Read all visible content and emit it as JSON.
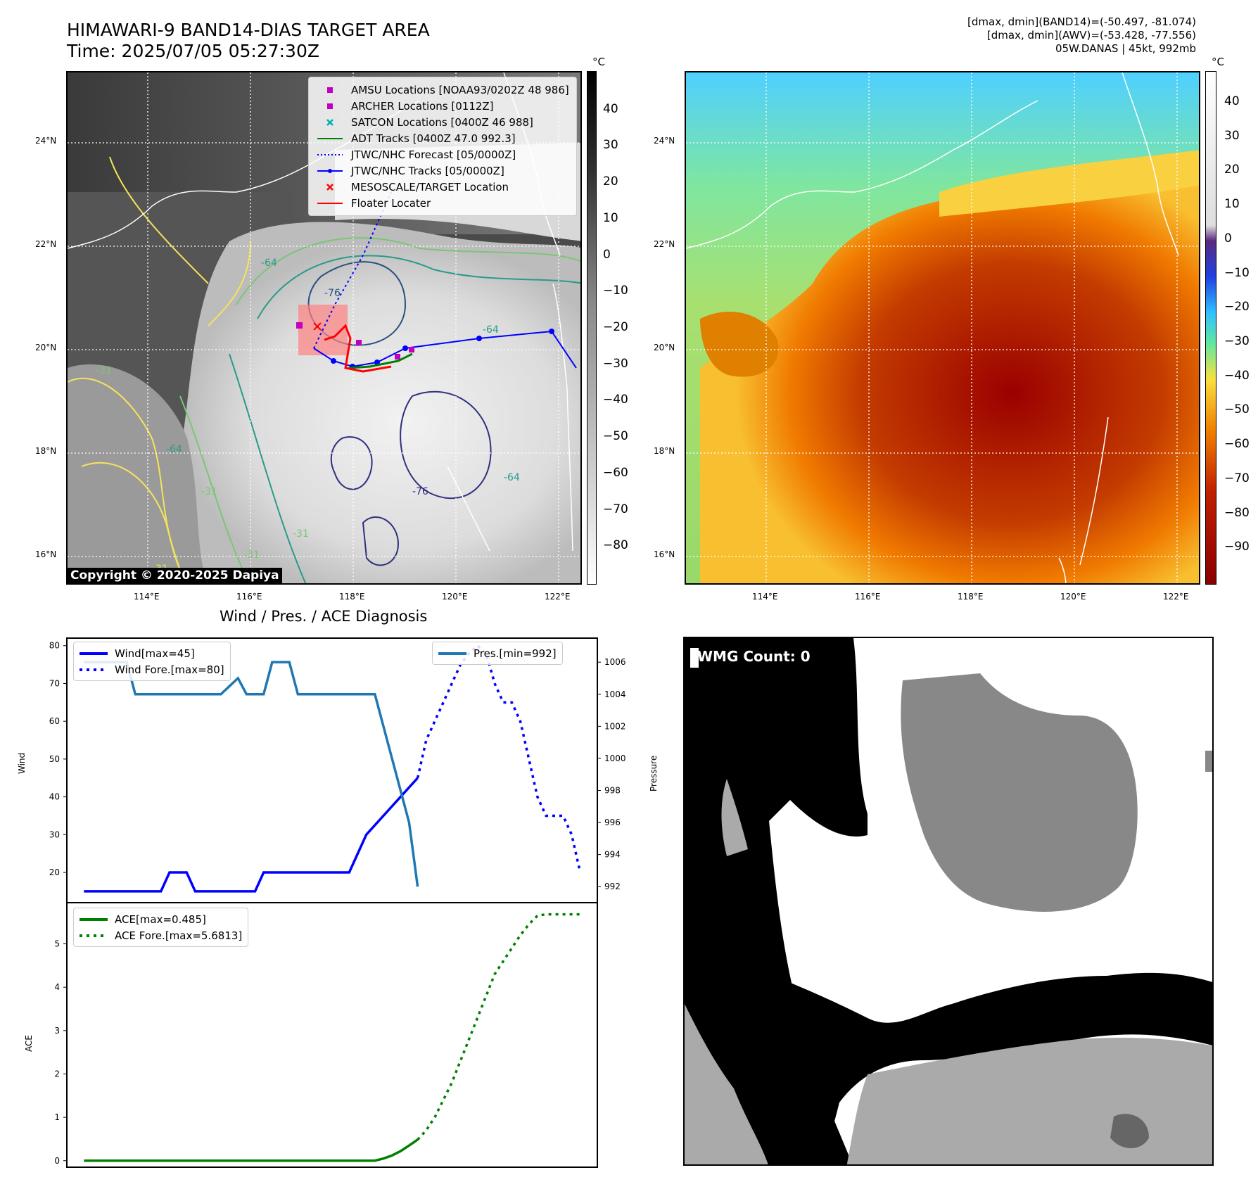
{
  "header": {
    "title_line1": "HIMAWARI-9 BAND14-DIAS TARGET AREA",
    "title_line2": "Time: 2025/07/05 05:27:30Z",
    "info_line1": "[dmax, dmin](BAND14)=(-50.497, -81.074)",
    "info_line2": "[dmax, dmin](AWV)=(-53.428, -77.556)",
    "info_line3": "05W.DANAS | 45kt, 992mb"
  },
  "map_axes": {
    "lat_ticks": [
      "24°N",
      "22°N",
      "20°N",
      "18°N",
      "16°N"
    ],
    "lon_ticks": [
      "114°E",
      "116°E",
      "118°E",
      "120°E",
      "122°E"
    ],
    "contour_labels": [
      "-64",
      "-76",
      "-31",
      "-31",
      "-64",
      "-76",
      "-64",
      "-31",
      "-31",
      "-31",
      "-64"
    ]
  },
  "ir_map": {
    "legend": [
      {
        "label": "AMSU Locations [NOAA93/0202Z 48 986]",
        "marker": "square",
        "color": "#c000c0"
      },
      {
        "label": "ARCHER Locations [0112Z]",
        "marker": "square",
        "color": "#c000c0"
      },
      {
        "label": "SATCON Locations [0400Z 46 988]",
        "marker": "x",
        "color": "#00b0b0"
      },
      {
        "label": "ADT Tracks [0400Z 47.0 992.3]",
        "marker": "line",
        "color": "#008000"
      },
      {
        "label": "JTWC/NHC Forecast [05/0000Z]",
        "marker": "dotted",
        "color": "#0000ff"
      },
      {
        "label": "JTWC/NHC Tracks [05/0000Z]",
        "marker": "line-dot",
        "color": "#0000ff"
      },
      {
        "label": "MESOSCALE/TARGET Location",
        "marker": "x",
        "color": "#ff0000"
      },
      {
        "label": "Floater Locater",
        "marker": "line",
        "color": "#ff0000"
      }
    ],
    "colorbar_unit": "°C",
    "colorbar_ticks": [
      "40",
      "30",
      "20",
      "10",
      "0",
      "−10",
      "−20",
      "−30",
      "−40",
      "−50",
      "−60",
      "−70",
      "−80"
    ],
    "copyright": "Copyright © 2020-2025 Dapiya"
  },
  "awv_map": {
    "colorbar_unit": "°C",
    "colorbar_ticks": [
      "40",
      "30",
      "20",
      "10",
      "0",
      "−10",
      "−20",
      "−30",
      "−40",
      "−50",
      "−60",
      "−70",
      "−80",
      "−90"
    ]
  },
  "wmg": {
    "label": "WMG Count: 0"
  },
  "chart_data": [
    {
      "type": "line",
      "title": "Wind / Pres. / ACE Diagnosis",
      "ylabel": "Wind",
      "y2label": "Pressure",
      "ylim": [
        12,
        82
      ],
      "y2lim": [
        991.0,
        1007.5
      ],
      "yticks": [
        20,
        30,
        40,
        50,
        60,
        70,
        80
      ],
      "y2ticks": [
        992,
        994,
        996,
        998,
        1000,
        1002,
        1004,
        1006
      ],
      "legend_left": [
        "Wind[max=45]",
        "Wind Fore.[max=80]"
      ],
      "legend_right": [
        "Pres.[min=992]"
      ],
      "series": [
        {
          "name": "Wind[max=45]",
          "axis": "left",
          "color": "#0000ff",
          "style": "solid",
          "x": [
            0,
            9,
            10,
            12,
            13,
            20,
            21,
            30,
            31,
            33,
            39
          ],
          "values": [
            15,
            15,
            20,
            20,
            15,
            15,
            20,
            20,
            20,
            30,
            45
          ]
        },
        {
          "name": "Wind Fore.[max=80]",
          "axis": "left",
          "color": "#0000ff",
          "style": "dotted",
          "x": [
            39,
            40,
            41,
            42,
            43,
            44,
            45,
            46,
            47,
            48,
            49,
            50,
            51,
            52,
            53,
            54,
            55,
            56,
            57,
            58
          ],
          "values": [
            45,
            55,
            60,
            65,
            70,
            75,
            78,
            80,
            78,
            70,
            65,
            65,
            60,
            50,
            40,
            35,
            35,
            35,
            30,
            20
          ]
        },
        {
          "name": "Pres.[min=992]",
          "axis": "right",
          "color": "#1f77b4",
          "style": "solid",
          "x": [
            0,
            5,
            6,
            12,
            13,
            15,
            16,
            18,
            19,
            21,
            22,
            24,
            25,
            27,
            28,
            30,
            31,
            34,
            35,
            36,
            37,
            38,
            39
          ],
          "values": [
            1006,
            1006,
            1004,
            1004,
            1004,
            1004,
            1004,
            1005,
            1004,
            1004,
            1006,
            1006,
            1004,
            1004,
            1004,
            1004,
            1004,
            1004,
            1002,
            1000,
            998,
            996,
            992
          ]
        }
      ]
    },
    {
      "type": "line",
      "ylabel": "ACE",
      "ylim": [
        -0.15,
        5.95
      ],
      "yticks": [
        0,
        1,
        2,
        3,
        4,
        5
      ],
      "legend": [
        "ACE[max=0.485]",
        "ACE Fore.[max=5.6813]"
      ],
      "series": [
        {
          "name": "ACE[max=0.485]",
          "color": "#008000",
          "style": "solid",
          "x": [
            0,
            33,
            34,
            35,
            36,
            37,
            38,
            39
          ],
          "values": [
            0,
            0,
            0.0,
            0.05,
            0.12,
            0.22,
            0.35,
            0.485
          ]
        },
        {
          "name": "ACE Fore.[max=5.6813]",
          "color": "#008000",
          "style": "dotted",
          "x": [
            39,
            40,
            41,
            42,
            43,
            44,
            45,
            46,
            47,
            48,
            49,
            50,
            51,
            52,
            53,
            54,
            55,
            56,
            57,
            58
          ],
          "values": [
            0.485,
            0.7,
            1.0,
            1.4,
            1.8,
            2.3,
            2.8,
            3.3,
            3.8,
            4.3,
            4.6,
            4.9,
            5.2,
            5.45,
            5.65,
            5.6813,
            5.6813,
            5.6813,
            5.6813,
            5.6813
          ]
        }
      ]
    }
  ]
}
